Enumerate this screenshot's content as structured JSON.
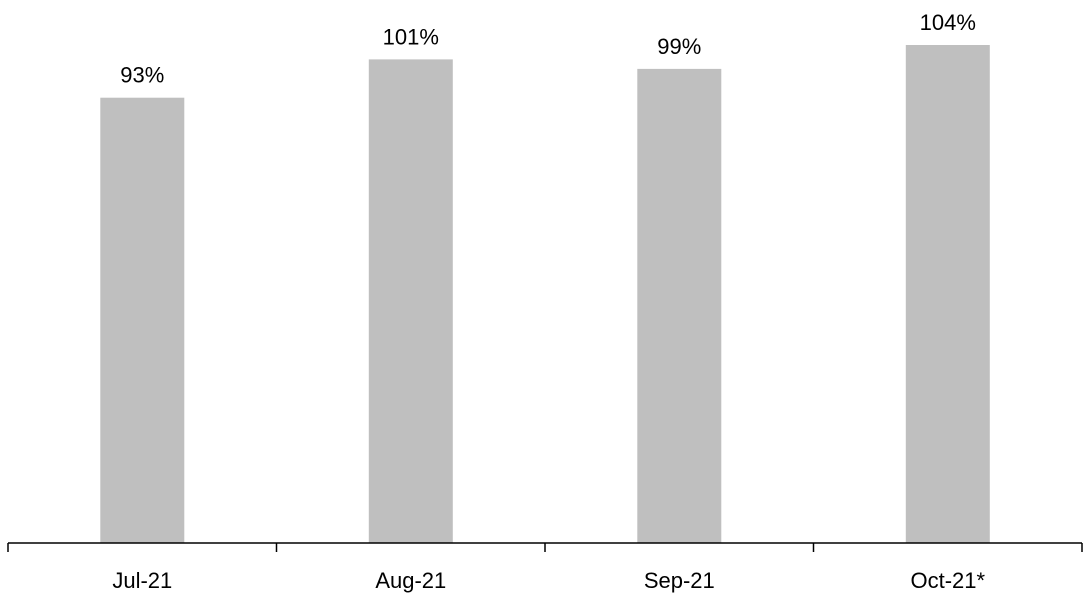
{
  "chart_data": {
    "type": "bar",
    "categories": [
      "Jul-21",
      "Aug-21",
      "Sep-21",
      "Oct-21*"
    ],
    "values": [
      93,
      101,
      99,
      104
    ],
    "data_labels": [
      "93%",
      "101%",
      "99%",
      "104%"
    ],
    "unit": "%",
    "title": "",
    "xlabel": "",
    "ylabel": "",
    "ylim": [
      0,
      104
    ],
    "y_axis_visible": false,
    "grid": false,
    "legend": "none",
    "bar_color": "#bfbfbf",
    "axis_color": "#000000"
  }
}
